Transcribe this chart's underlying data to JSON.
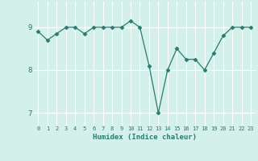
{
  "xlabel": "Humidex (Indice chaleur)",
  "ylabel": "",
  "x": [
    0,
    1,
    2,
    3,
    4,
    5,
    6,
    7,
    8,
    9,
    10,
    11,
    12,
    13,
    14,
    15,
    16,
    17,
    18,
    19,
    20,
    21,
    22,
    23
  ],
  "y": [
    8.9,
    8.7,
    8.85,
    9.0,
    9.0,
    8.85,
    9.0,
    9.0,
    9.0,
    9.0,
    9.15,
    9.0,
    8.1,
    7.0,
    8.0,
    8.5,
    8.25,
    8.25,
    8.0,
    8.4,
    8.8,
    9.0,
    9.0,
    9.0
  ],
  "line_color": "#2d7a6e",
  "marker": "D",
  "marker_size": 2.5,
  "bg_color": "#d4f0eb",
  "grid_color": "#ffffff",
  "tick_label_color": "#2d7a6e",
  "xlabel_color": "#2d7a6e",
  "ylim": [
    6.7,
    9.6
  ],
  "yticks": [
    7,
    8,
    9
  ],
  "xlim": [
    -0.5,
    23.5
  ]
}
